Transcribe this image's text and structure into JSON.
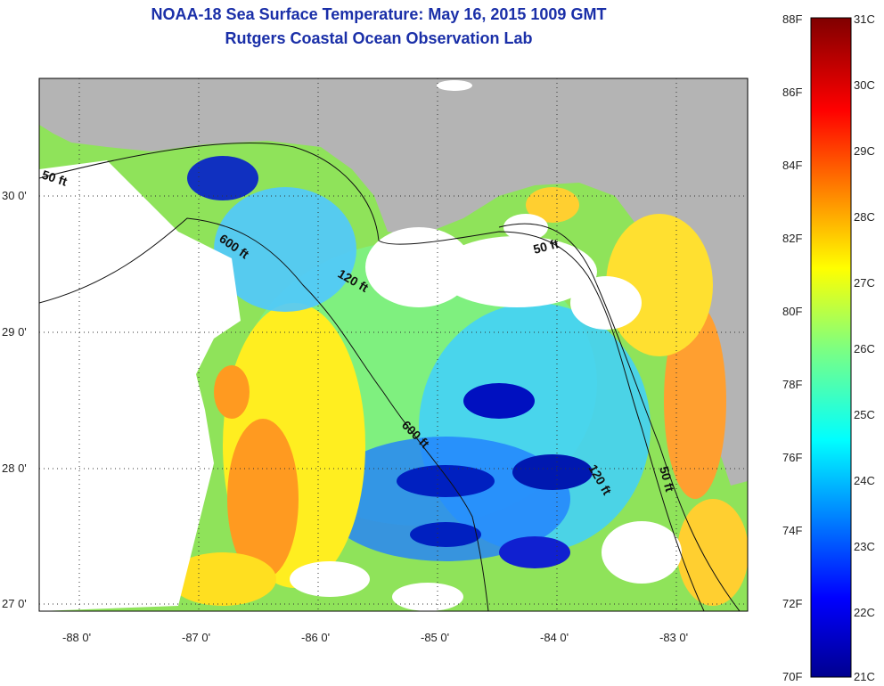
{
  "header": {
    "title": "NOAA-18 Sea Surface Temperature:  May 16, 2015 1009 GMT",
    "subtitle": "Rutgers Coastal Ocean Observation Lab"
  },
  "axes": {
    "lon_labels": [
      "-88 0'",
      "-87 0'",
      "-86 0'",
      "-85 0'",
      "-84 0'",
      "-83 0'"
    ],
    "lat_labels": [
      "30 0'",
      "29 0'",
      "28 0'",
      "27 0'"
    ]
  },
  "contours": {
    "c50_gulf": "50 ft",
    "c600_nw": "600 ft",
    "c120_nw": "120 ft",
    "c50_fl": "50 ft",
    "c600_mid": "600 ft",
    "c120_se": "120 ft",
    "c50_se": "50 ft"
  },
  "colorbar": {
    "f_labels": [
      "88F",
      "86F",
      "84F",
      "82F",
      "80F",
      "78F",
      "76F",
      "74F",
      "72F",
      "70F"
    ],
    "c_labels": [
      "31C",
      "30C",
      "29C",
      "28C",
      "27C",
      "26C",
      "25C",
      "24C",
      "23C",
      "22C",
      "21C"
    ]
  },
  "colors": {
    "land": "#b4b4b4",
    "cloud": "#ffffff",
    "title": "#1a2fa8"
  }
}
